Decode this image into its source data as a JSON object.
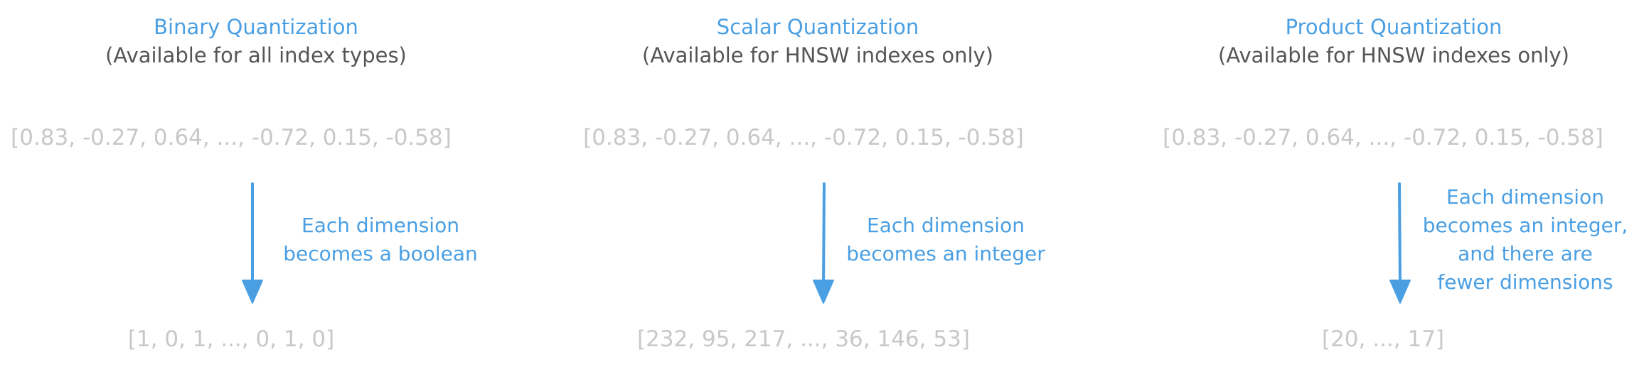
{
  "columns": [
    {
      "title": "Binary Quantization",
      "subtitle": "(Available for all index types)",
      "input_vector": "[0.83, -0.27, 0.64, ..., -0.72, 0.15, -0.58]",
      "note_lines": [
        "Each dimension",
        "becomes a boolean"
      ],
      "output_vector": "[1, 0, 1, ..., 0, 1, 0]"
    },
    {
      "title": "Scalar Quantization",
      "subtitle": "(Available for HNSW indexes only)",
      "input_vector": "[0.83, -0.27, 0.64, ..., -0.72, 0.15, -0.58]",
      "note_lines": [
        "Each dimension",
        "becomes an integer"
      ],
      "output_vector": "[232, 95, 217, ..., 36, 146, 53]"
    },
    {
      "title": "Product Quantization",
      "subtitle": "(Available for HNSW indexes only)",
      "input_vector": "[0.83, -0.27, 0.64, ..., -0.72, 0.15, -0.58]",
      "note_lines": [
        "Each dimension",
        "becomes an integer,",
        "and there are",
        "fewer dimensions"
      ],
      "output_vector": "[20, ..., 17]"
    }
  ],
  "colors": {
    "accent": "#4a9fe3",
    "subtitle": "#555555",
    "vector": "#c8c8c8"
  },
  "icons": [
    "down-arrow-icon"
  ]
}
